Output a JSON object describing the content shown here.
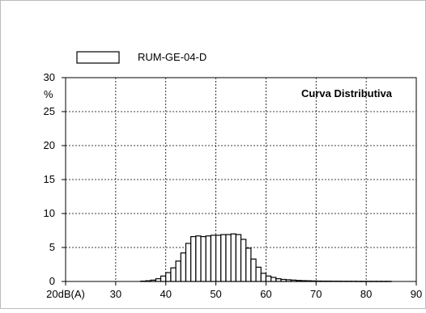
{
  "chart_data": {
    "type": "bar",
    "title": "Curva Distributiva",
    "ylabel": "%",
    "x_tick_labels": [
      {
        "x": 20,
        "label": "20dB(A)"
      },
      {
        "x": 30,
        "label": "30"
      },
      {
        "x": 40,
        "label": "40"
      },
      {
        "x": 50,
        "label": "50"
      },
      {
        "x": 60,
        "label": "60"
      },
      {
        "x": 70,
        "label": "70"
      },
      {
        "x": 80,
        "label": "80"
      },
      {
        "x": 90,
        "label": "90"
      }
    ],
    "y_ticks": [
      0,
      5,
      10,
      15,
      20,
      25,
      30
    ],
    "xlim": [
      20,
      90
    ],
    "ylim": [
      0,
      30
    ],
    "grid": true,
    "legend_position": "top-left",
    "bin_width": 1,
    "series": [
      {
        "name": "RUM-GE-04-D",
        "x": [
          35,
          36,
          37,
          38,
          39,
          40,
          41,
          42,
          43,
          44,
          45,
          46,
          47,
          48,
          49,
          50,
          51,
          52,
          53,
          54,
          55,
          56,
          57,
          58,
          59,
          60,
          61,
          62,
          63,
          64,
          65,
          66,
          67,
          68,
          69,
          70,
          71,
          72,
          73,
          74,
          75,
          76,
          77,
          78,
          79,
          80,
          81,
          82,
          83,
          84
        ],
        "values": [
          0.05,
          0.1,
          0.2,
          0.4,
          0.8,
          1.3,
          2.0,
          3.0,
          4.2,
          5.6,
          6.6,
          6.7,
          6.6,
          6.7,
          6.8,
          6.8,
          6.9,
          6.9,
          7.0,
          6.9,
          6.2,
          4.9,
          3.3,
          2.1,
          1.2,
          0.8,
          0.6,
          0.4,
          0.3,
          0.25,
          0.2,
          0.15,
          0.12,
          0.1,
          0.08,
          0.06,
          0.05,
          0.05,
          0.04,
          0.04,
          0.03,
          0.03,
          0.03,
          0.02,
          0.02,
          0.02,
          0.02,
          0.02,
          0.02,
          0.02
        ]
      }
    ]
  }
}
